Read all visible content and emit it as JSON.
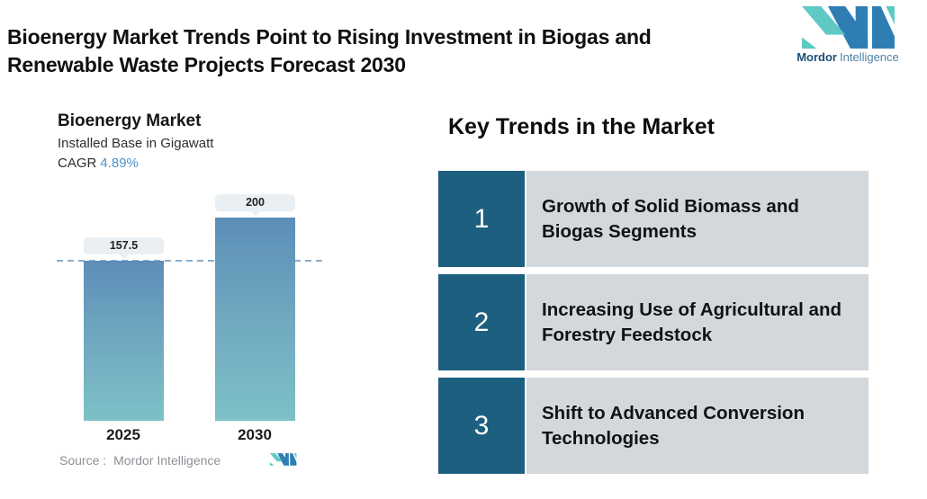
{
  "page": {
    "title_line1": "Bioenergy Market Trends Point to Rising Investment in Biogas and",
    "title_line2": "Renewable Waste Projects Forecast 2030"
  },
  "brand": {
    "name_bold": "Mordor",
    "name_light": "Intelligence"
  },
  "chart": {
    "title": "Bioenergy Market",
    "subtitle": "Installed Base in Gigawatt",
    "cagr_label": "CAGR",
    "cagr_value": "4.89%",
    "source_label": "Source :",
    "source_value": "Mordor Intelligence"
  },
  "chart_data": {
    "type": "bar",
    "title": "Bioenergy Market",
    "ylabel": "Installed Base in Gigawatt",
    "categories": [
      "2025",
      "2030"
    ],
    "values": [
      157.5,
      200
    ],
    "data_labels": [
      "157.5",
      "200"
    ],
    "cagr": "4.89%",
    "reference_line_y": 157.5,
    "ylim": [
      0,
      240
    ],
    "grid": false,
    "legend": false
  },
  "trends": {
    "heading": "Key Trends in the Market",
    "items": [
      {
        "number": "1",
        "text": "Growth of Solid Biomass and Biogas Segments"
      },
      {
        "number": "2",
        "text": "Increasing Use of Agricultural and Forestry Feedstock"
      },
      {
        "number": "3",
        "text": "Shift to Advanced Conversion Technologies"
      }
    ]
  },
  "colors": {
    "accent_teal_dark": "#1d5f7e",
    "row_gray": "#d3d8dd",
    "bar_gradient_top": "#5d8eb8",
    "bar_gradient_bottom": "#7ec0c7",
    "label_chip": "#e9eff2",
    "dashed_line": "#8badcb",
    "cagr_value": "#4f93c8",
    "logo_blue": "#2e7eb4",
    "logo_teal": "#5fc9c6"
  }
}
